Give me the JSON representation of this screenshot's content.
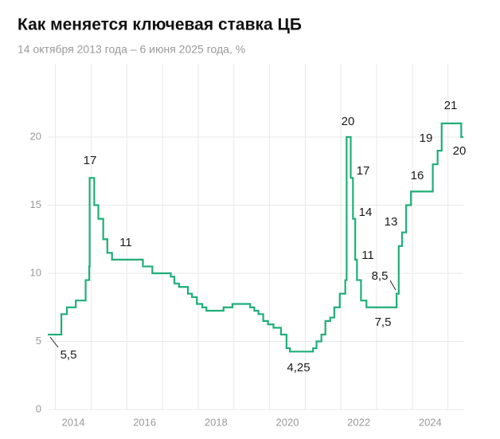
{
  "chart_data": {
    "type": "step",
    "title": "Как меняется ключевая ставка ЦБ",
    "subtitle": "14 октября 2013 года – 6 июня 2025 года, %",
    "color": "#1fae78",
    "x": [
      2013.786,
      2014.167,
      2014.322,
      2014.57,
      2014.847,
      2014.948,
      2014.959,
      2015.088,
      2015.203,
      2015.34,
      2015.455,
      2015.586,
      2016.451,
      2016.716,
      2017.233,
      2017.332,
      2017.463,
      2017.712,
      2017.827,
      2017.962,
      2018.115,
      2018.23,
      2018.71,
      2018.959,
      2019.458,
      2019.573,
      2019.688,
      2019.822,
      2019.956,
      2020.11,
      2020.32,
      2020.475,
      2020.57,
      2021.219,
      2021.315,
      2021.452,
      2021.564,
      2021.699,
      2021.814,
      2021.967,
      2022.121,
      2022.159,
      2022.274,
      2022.337,
      2022.4,
      2022.449,
      2022.562,
      2022.715,
      2023.559,
      2023.619,
      2023.712,
      2023.827,
      2023.962,
      2024.573,
      2024.708,
      2024.822,
      2025.37
    ],
    "values": [
      5.5,
      7,
      7.5,
      8,
      9.5,
      10.5,
      17,
      15,
      14,
      12.5,
      11.5,
      11,
      10.5,
      10,
      9.75,
      9.25,
      9,
      8.5,
      8.25,
      7.75,
      7.5,
      7.25,
      7.5,
      7.75,
      7.5,
      7.25,
      7,
      6.5,
      6.25,
      6,
      5.5,
      4.5,
      4.25,
      4.5,
      5,
      5.5,
      6.5,
      6.75,
      7.5,
      8.5,
      9.5,
      20,
      17,
      14,
      11,
      9.5,
      8,
      7.5,
      8.5,
      12,
      13,
      15,
      16,
      18,
      19,
      21,
      20
    ],
    "value_labels": [
      "5,5",
      null,
      null,
      null,
      null,
      null,
      "17",
      null,
      null,
      null,
      null,
      "11",
      null,
      null,
      null,
      null,
      null,
      null,
      null,
      null,
      null,
      null,
      null,
      null,
      null,
      null,
      null,
      null,
      null,
      null,
      null,
      null,
      "4,25",
      null,
      null,
      null,
      null,
      null,
      null,
      null,
      null,
      "20",
      "17",
      "14",
      "11",
      null,
      null,
      "7,5",
      "8,5",
      null,
      "13",
      null,
      "16",
      null,
      "19",
      "21",
      "20"
    ],
    "xlim": [
      2013.786,
      2025.43
    ],
    "xticks": [
      2014,
      2016,
      2018,
      2020,
      2022,
      2024
    ],
    "xgrid": [
      2014,
      2015,
      2016,
      2017,
      2018,
      2019,
      2020,
      2021,
      2022,
      2023,
      2024,
      2025
    ],
    "ylim": [
      0,
      25
    ],
    "yticks": [
      0,
      5,
      10,
      15,
      20
    ],
    "grid": true
  }
}
